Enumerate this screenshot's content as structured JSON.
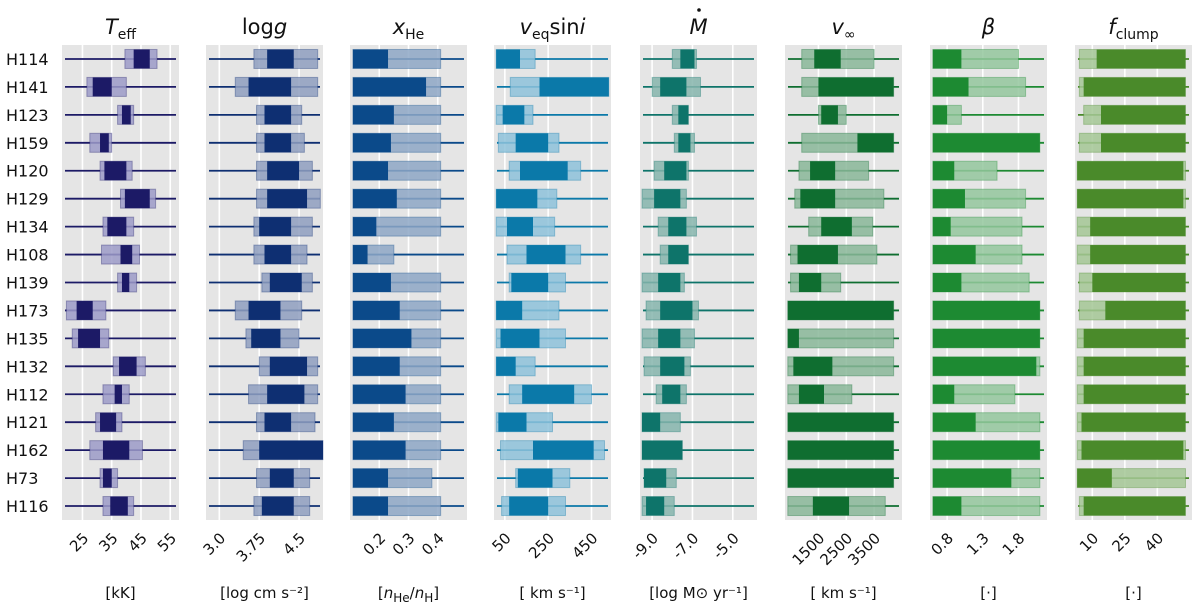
{
  "chart_data": {
    "type": "box",
    "rows": [
      "H114",
      "H141",
      "H123",
      "H159",
      "H120",
      "H129",
      "H134",
      "H108",
      "H139",
      "H173",
      "H135",
      "H132",
      "H112",
      "H121",
      "H162",
      "H73",
      "H116"
    ],
    "panels": [
      {
        "name": "teff",
        "title": "T_eff",
        "title_main": "T",
        "title_sub": "eff",
        "unit": "[kK]",
        "xlim": [
          18,
          58
        ],
        "ticks": [
          25,
          35,
          45,
          55
        ],
        "tick_labels": [
          "25",
          "35",
          "45",
          "55"
        ],
        "colors": {
          "dark": "#1c1a66",
          "light": "#9c9bc8",
          "line": "#1c1a66"
        },
        "boxes": [
          [
            39.5,
            42.5,
            48,
            50.5
          ],
          [
            26.5,
            28.5,
            35,
            40
          ],
          [
            37,
            38.5,
            41.5,
            42.5
          ],
          [
            27.5,
            31,
            34,
            35
          ],
          [
            31,
            32.5,
            40,
            42
          ],
          [
            38,
            39.5,
            48,
            50
          ],
          [
            32,
            33.5,
            40,
            42.5
          ],
          [
            31.5,
            38,
            42,
            44.5
          ],
          [
            37,
            38.5,
            41,
            43.5
          ],
          [
            19.5,
            23,
            28.5,
            33
          ],
          [
            21.5,
            23.5,
            31,
            34
          ],
          [
            35.5,
            37.5,
            43.5,
            46.5
          ],
          [
            32,
            36,
            38.5,
            41
          ],
          [
            29.5,
            31,
            36.5,
            38.5
          ],
          [
            27.5,
            32,
            41,
            45.5
          ],
          [
            31,
            32,
            35,
            37
          ],
          [
            32,
            34.5,
            40.5,
            42.5
          ]
        ]
      },
      {
        "name": "logg",
        "title": "logg",
        "title_main": "log",
        "title_sub": "g",
        "unit": "[log cm s⁻²]",
        "xlim": [
          2.75,
          4.95
        ],
        "ticks": [
          3.0,
          3.75,
          4.5
        ],
        "tick_labels": [
          "3.0",
          "3.75",
          "4.5"
        ],
        "colors": {
          "dark": "#0e2f72",
          "light": "#8f9fc0",
          "line": "#0e2f72"
        },
        "boxes": [
          [
            3.65,
            3.9,
            4.4,
            4.85
          ],
          [
            3.3,
            3.55,
            4.35,
            4.85
          ],
          [
            3.7,
            3.85,
            4.35,
            4.55
          ],
          [
            3.7,
            3.85,
            4.35,
            4.6
          ],
          [
            3.7,
            3.9,
            4.5,
            4.75
          ],
          [
            3.7,
            3.9,
            4.65,
            4.9
          ],
          [
            3.65,
            3.75,
            4.35,
            4.75
          ],
          [
            3.65,
            3.85,
            4.35,
            4.65
          ],
          [
            3.8,
            3.95,
            4.55,
            4.75
          ],
          [
            3.3,
            3.55,
            4.15,
            4.55
          ],
          [
            3.5,
            3.6,
            4.15,
            4.5
          ],
          [
            3.75,
            3.95,
            4.65,
            4.85
          ],
          [
            3.55,
            3.9,
            4.6,
            4.85
          ],
          [
            3.7,
            3.85,
            4.35,
            4.8
          ],
          [
            3.45,
            3.75,
            4.95,
            4.95
          ],
          [
            3.7,
            3.95,
            4.4,
            4.7
          ],
          [
            3.65,
            3.8,
            4.4,
            4.7
          ]
        ]
      },
      {
        "name": "xhe",
        "title": "x_He",
        "title_main": "x",
        "title_sub": "He",
        "unit": "[n_He/n_H]",
        "xlim": [
          0.1,
          0.5
        ],
        "ticks": [
          0.2,
          0.3,
          0.4
        ],
        "tick_labels": [
          "0.2",
          "0.3",
          "0.4"
        ],
        "colors": {
          "dark": "#0b4a8a",
          "light": "#8ea7c6",
          "line": "#0b4a8a"
        },
        "boxes": [
          [
            0.11,
            0.11,
            0.23,
            0.41
          ],
          [
            0.11,
            0.11,
            0.36,
            0.41
          ],
          [
            0.11,
            0.11,
            0.25,
            0.41
          ],
          [
            0.11,
            0.11,
            0.24,
            0.41
          ],
          [
            0.11,
            0.11,
            0.23,
            0.41
          ],
          [
            0.11,
            0.11,
            0.26,
            0.41
          ],
          [
            0.11,
            0.11,
            0.19,
            0.41
          ],
          [
            0.11,
            0.11,
            0.16,
            0.25
          ],
          [
            0.11,
            0.11,
            0.24,
            0.41
          ],
          [
            0.11,
            0.11,
            0.27,
            0.41
          ],
          [
            0.11,
            0.11,
            0.31,
            0.41
          ],
          [
            0.11,
            0.11,
            0.27,
            0.41
          ],
          [
            0.11,
            0.11,
            0.29,
            0.41
          ],
          [
            0.11,
            0.11,
            0.25,
            0.41
          ],
          [
            0.11,
            0.11,
            0.29,
            0.41
          ],
          [
            0.11,
            0.11,
            0.23,
            0.38
          ],
          [
            0.11,
            0.11,
            0.23,
            0.41
          ]
        ]
      },
      {
        "name": "vsini",
        "title": "v_eq sini",
        "title_main": "v",
        "title_sub": "eq",
        "title_tail": "sini",
        "unit": "[ km s⁻¹]",
        "xlim": [
          0,
          540
        ],
        "ticks": [
          50,
          250,
          450
        ],
        "tick_labels": [
          "50",
          "250",
          "450"
        ],
        "colors": {
          "dark": "#0b79a9",
          "light": "#8ec2da",
          "line": "#0b79a9"
        },
        "boxes": [
          [
            10,
            10,
            120,
            190
          ],
          [
            75,
            210,
            530,
            530
          ],
          [
            10,
            40,
            140,
            180
          ],
          [
            20,
            100,
            250,
            300
          ],
          [
            70,
            120,
            340,
            400
          ],
          [
            10,
            10,
            200,
            290
          ],
          [
            10,
            60,
            180,
            280
          ],
          [
            60,
            150,
            330,
            400
          ],
          [
            70,
            80,
            250,
            330
          ],
          [
            10,
            10,
            130,
            300
          ],
          [
            10,
            30,
            210,
            330
          ],
          [
            10,
            10,
            100,
            190
          ],
          [
            70,
            130,
            370,
            450
          ],
          [
            10,
            20,
            150,
            270
          ],
          [
            30,
            180,
            460,
            510
          ],
          [
            100,
            110,
            270,
            350
          ],
          [
            35,
            70,
            250,
            330
          ]
        ]
      },
      {
        "name": "mdot",
        "title": "Mdot",
        "title_main": "M",
        "title_sub": "",
        "unit": "[log M⊙ yr⁻¹]",
        "xlim": [
          -9.6,
          -3.8
        ],
        "ticks": [
          -9.0,
          -7.0,
          -5.0
        ],
        "tick_labels": [
          "-9.0",
          "-7.0",
          "-5.0"
        ],
        "colors": {
          "dark": "#0e746a",
          "light": "#86b5ad",
          "line": "#0e746a"
        },
        "boxes": [
          [
            -8.0,
            -7.6,
            -6.9,
            -6.8
          ],
          [
            -9.0,
            -8.6,
            -7.3,
            -6.6
          ],
          [
            -8.0,
            -7.7,
            -7.2,
            -7.2
          ],
          [
            -7.9,
            -7.7,
            -7.1,
            -6.9
          ],
          [
            -8.9,
            -8.4,
            -7.3,
            -7.2
          ],
          [
            -9.5,
            -8.9,
            -7.6,
            -7.3
          ],
          [
            -8.7,
            -8.2,
            -7.3,
            -6.8
          ],
          [
            -8.6,
            -8.2,
            -7.2,
            -7.2
          ],
          [
            -9.5,
            -8.7,
            -7.6,
            -7.4
          ],
          [
            -9.3,
            -8.6,
            -7.0,
            -6.7
          ],
          [
            -9.5,
            -8.7,
            -7.6,
            -6.9
          ],
          [
            -9.4,
            -8.6,
            -7.4,
            -7.1
          ],
          [
            -8.8,
            -8.5,
            -7.6,
            -7.3
          ],
          [
            -9.5,
            -9.5,
            -8.6,
            -7.6
          ],
          [
            -9.5,
            -9.5,
            -7.5,
            -7.5
          ],
          [
            -9.4,
            -9.4,
            -8.3,
            -7.8
          ],
          [
            -9.5,
            -9.3,
            -8.4,
            -7.9
          ]
        ]
      },
      {
        "name": "vinf",
        "title": "v_inf",
        "title_main": "v",
        "title_sub": "∞",
        "unit": "[ km s⁻¹]",
        "xlim": [
          300,
          4500
        ],
        "ticks": [
          1500,
          2500,
          3500
        ],
        "tick_labels": [
          "1500",
          "2500",
          "3500"
        ],
        "colors": {
          "dark": "#0f6e30",
          "light": "#8ab799",
          "line": "#0f6e30"
        },
        "boxes": [
          [
            900,
            1350,
            2300,
            3500
          ],
          [
            900,
            1500,
            4200,
            4200
          ],
          [
            1500,
            1600,
            2200,
            2500
          ],
          [
            900,
            2900,
            4200,
            4200
          ],
          [
            800,
            1200,
            2100,
            3300
          ],
          [
            650,
            850,
            2100,
            3850
          ],
          [
            1150,
            1600,
            2700,
            3450
          ],
          [
            500,
            750,
            2200,
            3600
          ],
          [
            500,
            800,
            1600,
            2300
          ],
          [
            400,
            400,
            4200,
            4200
          ],
          [
            400,
            400,
            800,
            4200
          ],
          [
            400,
            600,
            2000,
            4200
          ],
          [
            400,
            800,
            1700,
            2700
          ],
          [
            400,
            400,
            4200,
            4200
          ],
          [
            400,
            400,
            4200,
            4200
          ],
          [
            400,
            400,
            4200,
            4200
          ],
          [
            400,
            1300,
            2600,
            3900
          ]
        ]
      },
      {
        "name": "beta",
        "title": "beta",
        "title_main": "β",
        "title_sub": "",
        "unit": "[·]",
        "xlim": [
          0.56,
          2.2
        ],
        "ticks": [
          0.8,
          1.3,
          1.8
        ],
        "tick_labels": [
          "0.8",
          "1.3",
          "1.8"
        ],
        "colors": {
          "dark": "#1d8a32",
          "light": "#94c79e",
          "line": "#1d8a32"
        },
        "boxes": [
          [
            0.6,
            0.6,
            1.0,
            1.8
          ],
          [
            0.6,
            0.6,
            1.1,
            1.9
          ],
          [
            0.6,
            0.6,
            0.8,
            1.0
          ],
          [
            0.6,
            0.6,
            2.1,
            2.1
          ],
          [
            0.6,
            0.6,
            0.9,
            1.5
          ],
          [
            0.6,
            0.6,
            1.05,
            1.9
          ],
          [
            0.6,
            0.6,
            0.85,
            1.85
          ],
          [
            0.6,
            0.6,
            1.2,
            1.85
          ],
          [
            0.6,
            0.6,
            1.0,
            1.95
          ],
          [
            0.6,
            0.6,
            2.1,
            2.1
          ],
          [
            0.6,
            0.6,
            2.1,
            2.1
          ],
          [
            0.6,
            0.6,
            2.05,
            2.1
          ],
          [
            0.6,
            0.6,
            0.9,
            1.75
          ],
          [
            0.6,
            0.6,
            1.2,
            2.1
          ],
          [
            0.6,
            0.6,
            2.1,
            2.1
          ],
          [
            0.6,
            0.6,
            1.7,
            2.1
          ],
          [
            0.6,
            0.6,
            1.0,
            2.1
          ]
        ]
      },
      {
        "name": "fclump",
        "title": "f_clump",
        "title_main": "f",
        "title_sub": "clump",
        "unit": "[·]",
        "xlim": [
          2,
          56
        ],
        "ticks": [
          10,
          25,
          40
        ],
        "tick_labels": [
          "10",
          "25",
          "40"
        ],
        "colors": {
          "dark": "#4a8a2a",
          "light": "#a5c795",
          "line": "#4a8a2a"
        },
        "boxes": [
          [
            4,
            12,
            53,
            53
          ],
          [
            4,
            6,
            53,
            53
          ],
          [
            6,
            14,
            53,
            53
          ],
          [
            4,
            14,
            53,
            53
          ],
          [
            3,
            3,
            52,
            53
          ],
          [
            3,
            3,
            52,
            53
          ],
          [
            3,
            9,
            53,
            53
          ],
          [
            3,
            9,
            53,
            53
          ],
          [
            4,
            10,
            53,
            53
          ],
          [
            4,
            16,
            53,
            53
          ],
          [
            3,
            6,
            53,
            53
          ],
          [
            3,
            6,
            53,
            53
          ],
          [
            3,
            6,
            53,
            53
          ],
          [
            3,
            5,
            53,
            53
          ],
          [
            3,
            5,
            52,
            53
          ],
          [
            3,
            3,
            19,
            53
          ],
          [
            4,
            6,
            53,
            53
          ]
        ]
      }
    ]
  }
}
